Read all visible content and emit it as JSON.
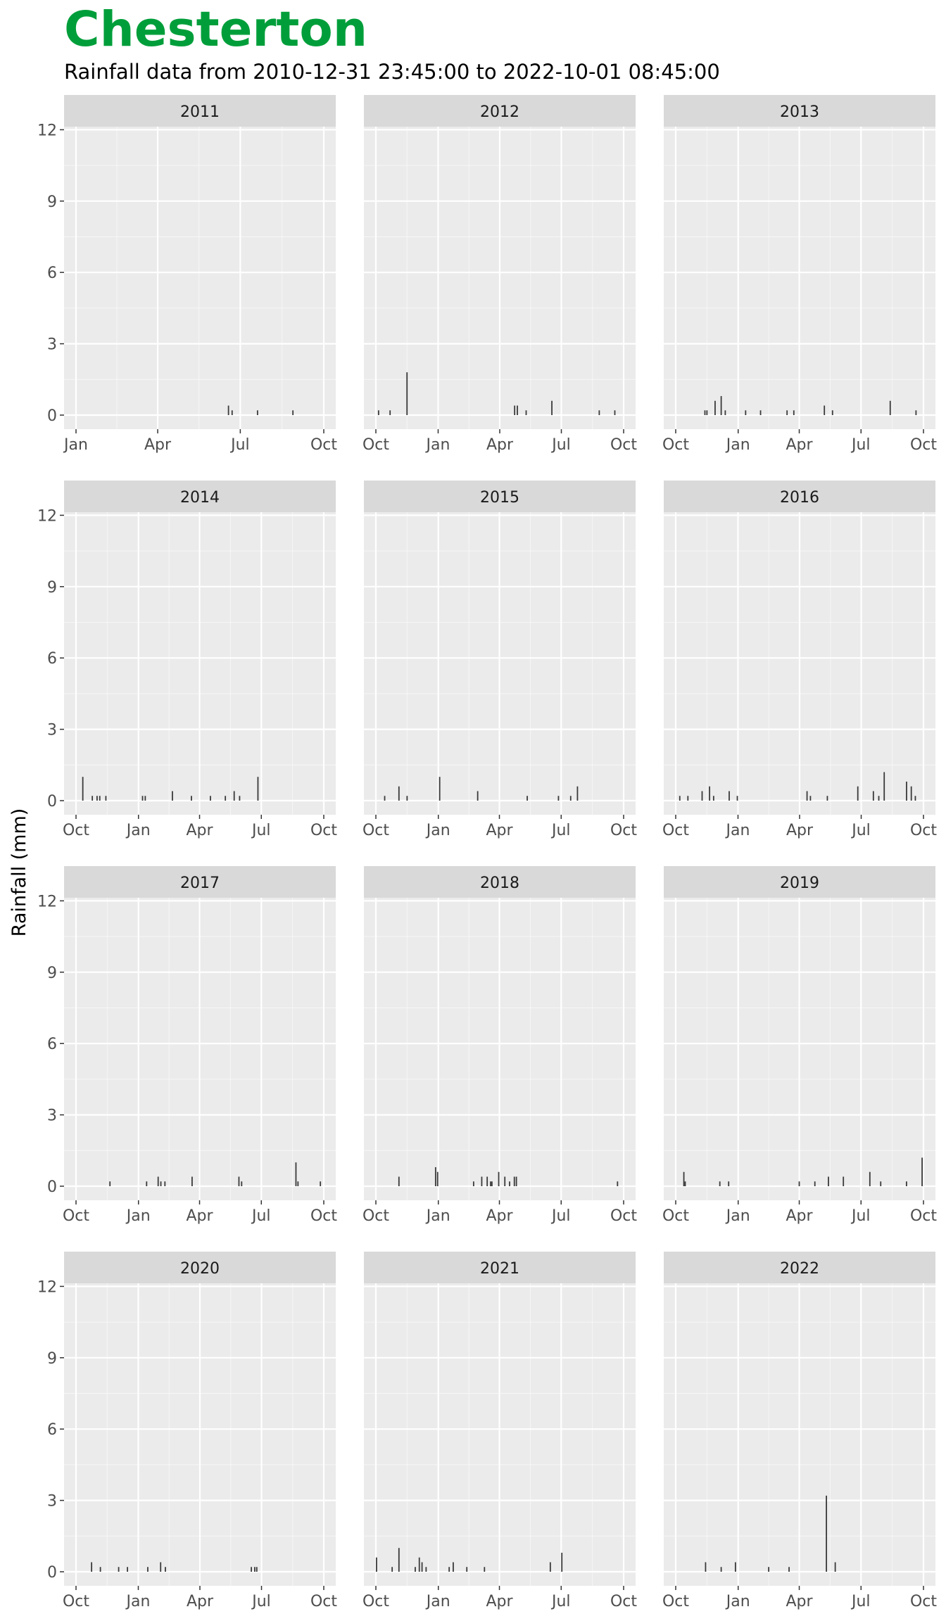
{
  "colors": {
    "title": "#009E3A",
    "panel_background": "#EBEBEB",
    "strip_background": "#D9D9D9",
    "grid_major": "#FFFFFF",
    "bars": "#3A3A3A",
    "tick_text": "#4D4D4D"
  },
  "chart_data": {
    "type": "bar",
    "layout": "facet-grid",
    "title": "Chesterton",
    "subtitle": "Rainfall data from 2010-12-31 23:45:00 to 2022-10-01 08:45:00",
    "xlabel": "",
    "ylabel": "Rainfall (mm)",
    "ylim": [
      0,
      12.6
    ],
    "yticks": [
      0,
      3,
      6,
      9,
      12
    ],
    "grid": true,
    "legend": "none",
    "panels": [
      {
        "label": "2011",
        "x_range": [
          "2011-01-01",
          "2011-10-01"
        ],
        "x_ticks": [
          {
            "date": "2011-01-01",
            "label": "Jan"
          },
          {
            "date": "2011-04-01",
            "label": "Apr"
          },
          {
            "date": "2011-07-01",
            "label": "Jul"
          },
          {
            "date": "2011-10-01",
            "label": "Oct"
          }
        ],
        "bars": [
          [
            "2011-06-18",
            0.4
          ],
          [
            "2011-06-22",
            0.2
          ],
          [
            "2011-07-20",
            0.2
          ],
          [
            "2011-08-28",
            0.2
          ]
        ]
      },
      {
        "label": "2012",
        "x_range": [
          "2011-10-01",
          "2012-10-01"
        ],
        "x_ticks": [
          {
            "date": "2011-10-01",
            "label": "Oct"
          },
          {
            "date": "2012-01-01",
            "label": "Jan"
          },
          {
            "date": "2012-04-01",
            "label": "Apr"
          },
          {
            "date": "2012-07-01",
            "label": "Jul"
          },
          {
            "date": "2012-10-01",
            "label": "Oct"
          }
        ],
        "bars": [
          [
            "2011-10-05",
            0.2
          ],
          [
            "2011-10-22",
            0.2
          ],
          [
            "2011-11-16",
            1.8
          ],
          [
            "2012-04-23",
            0.4
          ],
          [
            "2012-04-27",
            0.4
          ],
          [
            "2012-05-10",
            0.2
          ],
          [
            "2012-06-17",
            0.6
          ],
          [
            "2012-08-26",
            0.2
          ],
          [
            "2012-09-18",
            0.2
          ]
        ]
      },
      {
        "label": "2013",
        "x_range": [
          "2012-10-01",
          "2013-10-01"
        ],
        "x_ticks": [
          {
            "date": "2012-10-01",
            "label": "Oct"
          },
          {
            "date": "2013-01-01",
            "label": "Jan"
          },
          {
            "date": "2013-04-01",
            "label": "Apr"
          },
          {
            "date": "2013-07-01",
            "label": "Jul"
          },
          {
            "date": "2013-10-01",
            "label": "Oct"
          }
        ],
        "bars": [
          [
            "2012-11-13",
            0.2
          ],
          [
            "2012-11-16",
            0.2
          ],
          [
            "2012-11-28",
            0.6
          ],
          [
            "2012-12-07",
            0.8
          ],
          [
            "2012-12-13",
            0.2
          ],
          [
            "2013-01-12",
            0.2
          ],
          [
            "2013-02-03",
            0.2
          ],
          [
            "2013-03-14",
            0.2
          ],
          [
            "2013-03-24",
            0.2
          ],
          [
            "2013-05-08",
            0.4
          ],
          [
            "2013-05-20",
            0.2
          ],
          [
            "2013-08-13",
            0.6
          ],
          [
            "2013-09-20",
            0.2
          ]
        ]
      },
      {
        "label": "2014",
        "x_range": [
          "2013-10-01",
          "2014-10-01"
        ],
        "x_ticks": [
          {
            "date": "2013-10-01",
            "label": "Oct"
          },
          {
            "date": "2014-01-01",
            "label": "Jan"
          },
          {
            "date": "2014-04-01",
            "label": "Apr"
          },
          {
            "date": "2014-07-01",
            "label": "Jul"
          },
          {
            "date": "2014-10-01",
            "label": "Oct"
          }
        ],
        "bars": [
          [
            "2013-10-11",
            1.0
          ],
          [
            "2013-10-25",
            0.2
          ],
          [
            "2013-11-01",
            0.2
          ],
          [
            "2013-11-05",
            0.2
          ],
          [
            "2013-11-14",
            0.2
          ],
          [
            "2014-01-07",
            0.2
          ],
          [
            "2014-01-11",
            0.2
          ],
          [
            "2014-02-20",
            0.4
          ],
          [
            "2014-03-20",
            0.2
          ],
          [
            "2014-04-17",
            0.2
          ],
          [
            "2014-05-09",
            0.2
          ],
          [
            "2014-05-22",
            0.4
          ],
          [
            "2014-05-30",
            0.2
          ],
          [
            "2014-06-26",
            1.0
          ]
        ]
      },
      {
        "label": "2015",
        "x_range": [
          "2014-10-01",
          "2015-10-01"
        ],
        "x_ticks": [
          {
            "date": "2014-10-01",
            "label": "Oct"
          },
          {
            "date": "2015-01-01",
            "label": "Jan"
          },
          {
            "date": "2015-04-01",
            "label": "Apr"
          },
          {
            "date": "2015-07-01",
            "label": "Jul"
          },
          {
            "date": "2015-10-01",
            "label": "Oct"
          }
        ],
        "bars": [
          [
            "2014-10-14",
            0.2
          ],
          [
            "2014-11-04",
            0.6
          ],
          [
            "2014-11-16",
            0.2
          ],
          [
            "2015-01-03",
            1.0
          ],
          [
            "2015-02-28",
            0.4
          ],
          [
            "2015-05-12",
            0.2
          ],
          [
            "2015-06-27",
            0.2
          ],
          [
            "2015-07-15",
            0.2
          ],
          [
            "2015-07-25",
            0.6
          ]
        ]
      },
      {
        "label": "2016",
        "x_range": [
          "2015-10-01",
          "2016-10-01"
        ],
        "x_ticks": [
          {
            "date": "2015-10-01",
            "label": "Oct"
          },
          {
            "date": "2016-01-01",
            "label": "Jan"
          },
          {
            "date": "2016-04-01",
            "label": "Apr"
          },
          {
            "date": "2016-07-01",
            "label": "Jul"
          },
          {
            "date": "2016-10-01",
            "label": "Oct"
          }
        ],
        "bars": [
          [
            "2015-10-07",
            0.2
          ],
          [
            "2015-10-19",
            0.2
          ],
          [
            "2015-11-09",
            0.4
          ],
          [
            "2015-11-20",
            0.6
          ],
          [
            "2015-11-26",
            0.2
          ],
          [
            "2015-12-19",
            0.4
          ],
          [
            "2015-12-31",
            0.2
          ],
          [
            "2016-04-12",
            0.4
          ],
          [
            "2016-04-17",
            0.2
          ],
          [
            "2016-05-12",
            0.2
          ],
          [
            "2016-06-26",
            0.6
          ],
          [
            "2016-07-19",
            0.4
          ],
          [
            "2016-07-27",
            0.2
          ],
          [
            "2016-08-04",
            1.2
          ],
          [
            "2016-09-06",
            0.8
          ],
          [
            "2016-09-13",
            0.6
          ],
          [
            "2016-09-19",
            0.2
          ]
        ]
      },
      {
        "label": "2017",
        "x_range": [
          "2016-10-01",
          "2017-10-01"
        ],
        "x_ticks": [
          {
            "date": "2016-10-01",
            "label": "Oct"
          },
          {
            "date": "2017-01-01",
            "label": "Jan"
          },
          {
            "date": "2017-04-01",
            "label": "Apr"
          },
          {
            "date": "2017-07-01",
            "label": "Jul"
          },
          {
            "date": "2017-10-01",
            "label": "Oct"
          }
        ],
        "bars": [
          [
            "2016-11-20",
            0.2
          ],
          [
            "2017-01-13",
            0.2
          ],
          [
            "2017-01-30",
            0.4
          ],
          [
            "2017-02-03",
            0.2
          ],
          [
            "2017-02-09",
            0.2
          ],
          [
            "2017-03-21",
            0.4
          ],
          [
            "2017-05-29",
            0.4
          ],
          [
            "2017-06-02",
            0.2
          ],
          [
            "2017-08-21",
            1.0
          ],
          [
            "2017-08-24",
            0.2
          ],
          [
            "2017-09-26",
            0.2
          ]
        ]
      },
      {
        "label": "2018",
        "x_range": [
          "2017-10-01",
          "2018-10-01"
        ],
        "x_ticks": [
          {
            "date": "2017-10-01",
            "label": "Oct"
          },
          {
            "date": "2018-01-01",
            "label": "Jan"
          },
          {
            "date": "2018-04-01",
            "label": "Apr"
          },
          {
            "date": "2018-07-01",
            "label": "Jul"
          },
          {
            "date": "2018-10-01",
            "label": "Oct"
          }
        ],
        "bars": [
          [
            "2017-11-04",
            0.4
          ],
          [
            "2017-12-28",
            0.8
          ],
          [
            "2017-12-31",
            0.6
          ],
          [
            "2018-02-22",
            0.2
          ],
          [
            "2018-03-06",
            0.4
          ],
          [
            "2018-03-14",
            0.4
          ],
          [
            "2018-03-19",
            0.2
          ],
          [
            "2018-03-21",
            0.2
          ],
          [
            "2018-03-31",
            0.6
          ],
          [
            "2018-04-09",
            0.4
          ],
          [
            "2018-04-16",
            0.2
          ],
          [
            "2018-04-23",
            0.4
          ],
          [
            "2018-04-26",
            0.4
          ],
          [
            "2018-09-22",
            0.2
          ]
        ]
      },
      {
        "label": "2019",
        "x_range": [
          "2018-10-01",
          "2019-10-01"
        ],
        "x_ticks": [
          {
            "date": "2018-10-01",
            "label": "Oct"
          },
          {
            "date": "2019-01-01",
            "label": "Jan"
          },
          {
            "date": "2019-04-01",
            "label": "Apr"
          },
          {
            "date": "2019-07-01",
            "label": "Jul"
          },
          {
            "date": "2019-10-01",
            "label": "Oct"
          }
        ],
        "bars": [
          [
            "2018-10-13",
            0.6
          ],
          [
            "2018-10-15",
            0.2
          ],
          [
            "2018-12-05",
            0.2
          ],
          [
            "2018-12-18",
            0.2
          ],
          [
            "2019-04-01",
            0.2
          ],
          [
            "2019-04-24",
            0.2
          ],
          [
            "2019-05-14",
            0.4
          ],
          [
            "2019-06-05",
            0.4
          ],
          [
            "2019-07-14",
            0.6
          ],
          [
            "2019-07-30",
            0.2
          ],
          [
            "2019-09-06",
            0.2
          ],
          [
            "2019-09-29",
            1.2
          ]
        ]
      },
      {
        "label": "2020",
        "x_range": [
          "2019-10-01",
          "2020-10-01"
        ],
        "x_ticks": [
          {
            "date": "2019-10-01",
            "label": "Oct"
          },
          {
            "date": "2020-01-01",
            "label": "Jan"
          },
          {
            "date": "2020-04-01",
            "label": "Apr"
          },
          {
            "date": "2020-07-01",
            "label": "Jul"
          },
          {
            "date": "2020-10-01",
            "label": "Oct"
          }
        ],
        "bars": [
          [
            "2019-10-24",
            0.4
          ],
          [
            "2019-11-06",
            0.2
          ],
          [
            "2019-12-03",
            0.2
          ],
          [
            "2019-12-16",
            0.2
          ],
          [
            "2020-01-15",
            0.2
          ],
          [
            "2020-02-03",
            0.4
          ],
          [
            "2020-02-10",
            0.2
          ],
          [
            "2020-06-16",
            0.2
          ],
          [
            "2020-06-21",
            0.2
          ],
          [
            "2020-06-24",
            0.2
          ]
        ]
      },
      {
        "label": "2021",
        "x_range": [
          "2020-10-01",
          "2021-10-01"
        ],
        "x_ticks": [
          {
            "date": "2020-10-01",
            "label": "Oct"
          },
          {
            "date": "2021-01-01",
            "label": "Jan"
          },
          {
            "date": "2021-04-01",
            "label": "Apr"
          },
          {
            "date": "2021-07-01",
            "label": "Jul"
          },
          {
            "date": "2021-10-01",
            "label": "Oct"
          }
        ],
        "bars": [
          [
            "2020-10-02",
            0.6
          ],
          [
            "2020-10-25",
            0.2
          ],
          [
            "2020-11-04",
            1.0
          ],
          [
            "2020-11-28",
            0.2
          ],
          [
            "2020-12-04",
            0.6
          ],
          [
            "2020-12-08",
            0.4
          ],
          [
            "2020-12-14",
            0.2
          ],
          [
            "2021-01-17",
            0.2
          ],
          [
            "2021-01-23",
            0.4
          ],
          [
            "2021-02-12",
            0.2
          ],
          [
            "2021-03-10",
            0.2
          ],
          [
            "2021-06-15",
            0.4
          ],
          [
            "2021-07-02",
            0.8
          ]
        ]
      },
      {
        "label": "2022",
        "x_range": [
          "2021-10-01",
          "2022-10-01"
        ],
        "x_ticks": [
          {
            "date": "2021-10-01",
            "label": "Oct"
          },
          {
            "date": "2022-01-01",
            "label": "Jan"
          },
          {
            "date": "2022-04-01",
            "label": "Apr"
          },
          {
            "date": "2022-07-01",
            "label": "Jul"
          },
          {
            "date": "2022-10-01",
            "label": "Oct"
          }
        ],
        "bars": [
          [
            "2021-11-14",
            0.4
          ],
          [
            "2021-12-07",
            0.2
          ],
          [
            "2021-12-28",
            0.4
          ],
          [
            "2022-02-15",
            0.2
          ],
          [
            "2022-03-17",
            0.2
          ],
          [
            "2022-05-11",
            3.2
          ],
          [
            "2022-05-24",
            0.4
          ]
        ]
      }
    ]
  }
}
